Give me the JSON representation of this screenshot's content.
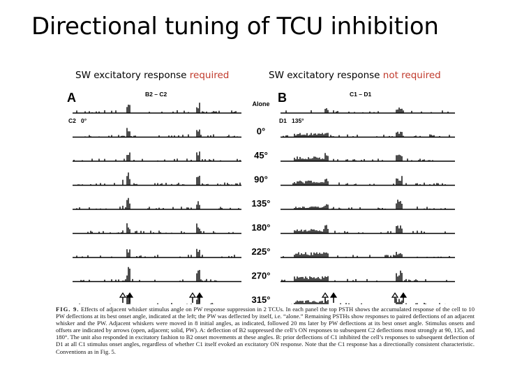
{
  "slide": {
    "title": "Directional tuning of TCU inhibition",
    "left_subhead_prefix": "SW excitatory response ",
    "left_subhead_highlight": "required",
    "right_subhead_prefix": "SW excitatory response ",
    "right_subhead_highlight": "not required",
    "highlight_color": "#c0392b"
  },
  "figure": {
    "panel_a": {
      "letter": "A",
      "pair": "B2 – C2",
      "adjacent": "C2",
      "best_angle": "0°"
    },
    "panel_b": {
      "letter": "B",
      "pair": "C1 – D1",
      "adjacent": "D1",
      "best_angle": "135°"
    },
    "row_labels": [
      "Alone",
      "0°",
      "45°",
      "90°",
      "135°",
      "180°",
      "225°",
      "270°",
      "315°"
    ],
    "arrow_markers": [
      "open-arrow",
      "solid-arrow"
    ]
  },
  "caption": {
    "label": "FIG. 9.",
    "text": "Effects of adjacent whisker stimulus angle on PW response suppression in 2 TCUs. In each panel the top PSTH shows the accumulated response of the cell to 10 PW deflections at its best onset angle, indicated at the left; the PW was deflected by itself, i.e. “alone.” Remaining PSTHs show responses to paired deflections of an adjacent whisker and the PW. Adjacent whiskers were moved in 8 initial angles, as indicated, followed 20 ms later by PW deflections at its best onset angle. Stimulus onsets and offsets are indicated by arrows (open, adjacent; solid, PW). A: deflection of B2 suppressed the cell’s ON responses to subsequent C2 deflections most strongly at 90, 135, and 180°. The unit also responded in excitatory fashion to B2 onset movements at these angles. B: prior deflections of C1 inhibited the cell’s responses to subsequent deflection of D1 at all C1 stimulus onset angles, regardless of whether C1 itself evoked an excitatory ON response. Note that the C1 response has a directionally consistent characteristic. Conventions as in Fig. 5."
  }
}
